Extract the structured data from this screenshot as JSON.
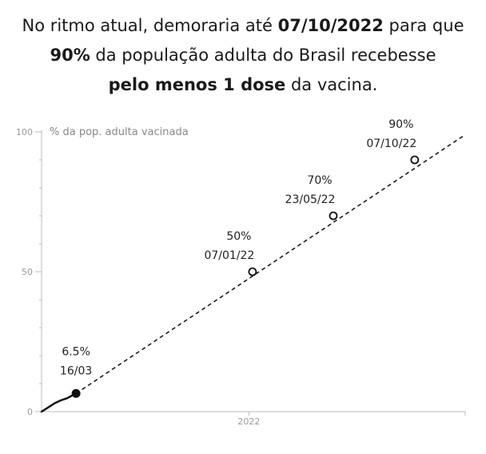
{
  "headline": {
    "p1": "No ritmo atual, demoraria até ",
    "b1": "07/10/2022",
    "p2": " para que",
    "b2": "90%",
    "p3": " da população adulta do Brasil recebesse ",
    "b3": "pelo menos 1 dose",
    "p4": " da vacina."
  },
  "colors": {
    "text": "#1a1a1a",
    "axis": "#bbbbbb",
    "tick_text": "#999999",
    "line": "#111111"
  },
  "chart_data": {
    "type": "line",
    "title": "",
    "ylabel": "% da pop. adulta vacinada",
    "xlabel": "",
    "ylim": [
      0,
      100
    ],
    "y_ticks": [
      0,
      50,
      100
    ],
    "y_tick_labels": [
      "0",
      "50",
      "100"
    ],
    "x_tick_labels": [
      "2022"
    ],
    "x_ticks": [
      "2022-01-01"
    ],
    "xlim": [
      "2021-01-17",
      "2022-12-31"
    ],
    "grid": false,
    "series": [
      {
        "style": "solid",
        "x": [
          "2021-01-17",
          "2021-01-28",
          "2021-02-08",
          "2021-02-18",
          "2021-03-01",
          "2021-03-08",
          "2021-03-16"
        ],
        "y": [
          0,
          1.5,
          3.0,
          4.0,
          4.8,
          5.6,
          6.5
        ]
      },
      {
        "style": "dashed",
        "x": [
          "2021-03-16",
          "2022-12-31"
        ],
        "y": [
          6.5,
          99.0
        ]
      }
    ],
    "annotations": [
      {
        "x": "2021-03-16",
        "y": 6.5,
        "label": "6.5%",
        "date": "16/03",
        "marker": "filled"
      },
      {
        "x": "2022-01-07",
        "y": 50,
        "label": "50%",
        "date": "07/01/22",
        "marker": "open"
      },
      {
        "x": "2022-05-23",
        "y": 70,
        "label": "70%",
        "date": "23/05/22",
        "marker": "open"
      },
      {
        "x": "2022-10-07",
        "y": 90,
        "label": "90%",
        "date": "07/10/22",
        "marker": "open"
      }
    ]
  }
}
